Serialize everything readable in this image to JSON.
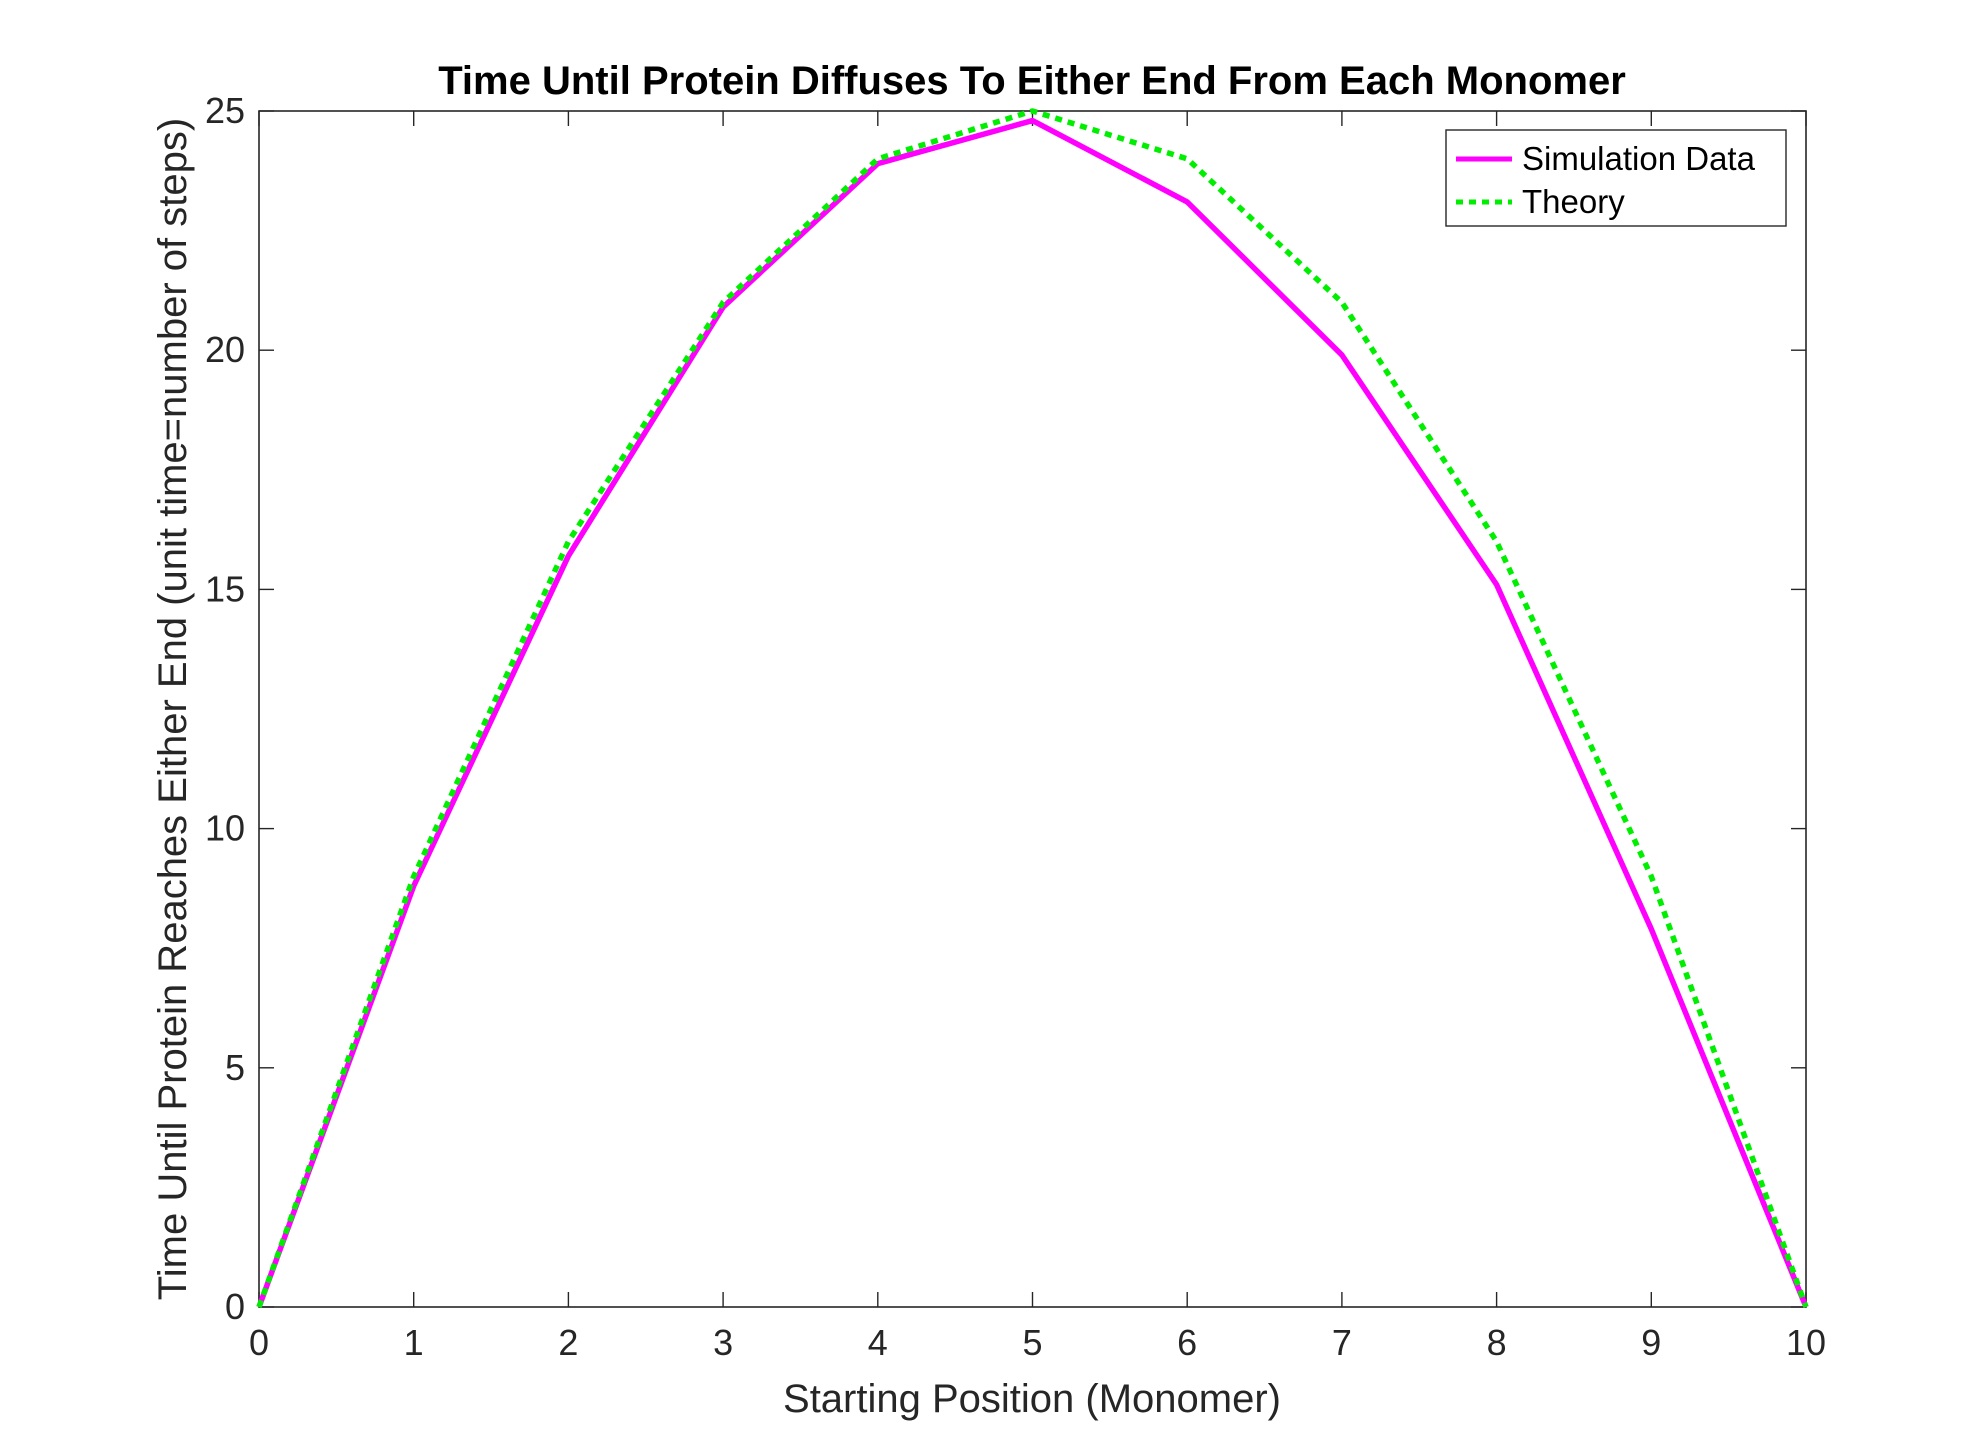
{
  "chart_data": {
    "type": "line",
    "title": "Time Until Protein Diffuses To Either End From Each Monomer",
    "xlabel": "Starting Position (Monomer)",
    "ylabel": "Time Until Protein Reaches Either End (unit time=number of steps)",
    "xlim": [
      0,
      10
    ],
    "ylim": [
      0,
      25
    ],
    "xticks": [
      "0",
      "1",
      "2",
      "3",
      "4",
      "5",
      "6",
      "7",
      "8",
      "9",
      "10"
    ],
    "yticks": [
      "0",
      "5",
      "10",
      "15",
      "20",
      "25"
    ],
    "grid": false,
    "legend_position": "top-right",
    "x": [
      0,
      1,
      2,
      3,
      4,
      5,
      6,
      7,
      8,
      9,
      10
    ],
    "series": [
      {
        "name": "Simulation Data",
        "color": "#ff00ff",
        "style": "solid",
        "values": [
          0,
          8.8,
          15.7,
          20.9,
          23.9,
          24.8,
          23.1,
          19.9,
          15.1,
          7.9,
          0
        ]
      },
      {
        "name": "Theory",
        "color": "#00ee00",
        "style": "dotted",
        "values": [
          0,
          9,
          16,
          21,
          24,
          25,
          24,
          21,
          16,
          9,
          0
        ]
      }
    ]
  }
}
